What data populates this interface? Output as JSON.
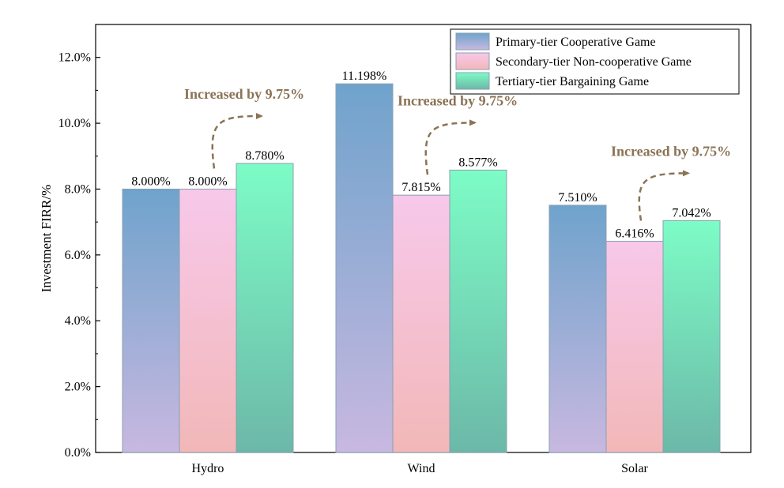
{
  "chart_data": {
    "type": "bar",
    "title": "",
    "xlabel": "",
    "ylabel": "Investment FIRR/%",
    "ylim": [
      0,
      0.13
    ],
    "yticks": [
      0,
      0.02,
      0.04,
      0.06,
      0.08,
      0.1,
      0.12
    ],
    "ytick_labels": [
      "0.0%",
      "2.0%",
      "4.0%",
      "6.0%",
      "8.0%",
      "10.0%",
      "12.0%"
    ],
    "categories": [
      "Hydro",
      "Wind",
      "Solar"
    ],
    "series": [
      {
        "name": "Primary-tier Cooperative Game",
        "values": [
          0.08,
          0.11198,
          0.0751
        ],
        "labels": [
          "8.000%",
          "11.198%",
          "7.510%"
        ],
        "color_top": "#6fa3cc",
        "color_bottom": "#c8b8e0"
      },
      {
        "name": "Secondary-tier Non-cooperative Game",
        "values": [
          0.08,
          0.07815,
          0.06416
        ],
        "labels": [
          "8.000%",
          "7.815%",
          "6.416%"
        ],
        "color_top": "#f7c8ea",
        "color_bottom": "#f2b8b8"
      },
      {
        "name": "Tertiary-tier Bargaining Game",
        "values": [
          0.0878,
          0.08577,
          0.07042
        ],
        "labels": [
          "8.780%",
          "8.577%",
          "7.042%"
        ],
        "color_top": "#7dfcc6",
        "color_bottom": "#6cb8a8"
      }
    ],
    "annotations": [
      {
        "text": "Increased by 9.75%",
        "category": "Hydro"
      },
      {
        "text": "Increased by 9.75%",
        "category": "Wind"
      },
      {
        "text": "Increased by 9.75%",
        "category": "Solar"
      }
    ],
    "grid": false,
    "legend_position": "top-right",
    "annotation_color": "#8b7355"
  }
}
